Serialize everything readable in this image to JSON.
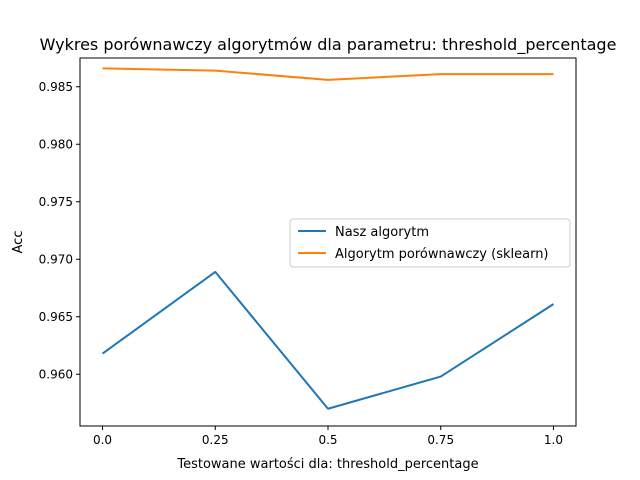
{
  "chart_data": {
    "type": "line",
    "title": "Wykres porównawczy algorytmów dla parametru: threshold_percentage",
    "xlabel": "Testowane wartości dla: threshold_percentage",
    "ylabel": "Acc",
    "x": [
      0.0,
      0.25,
      0.5,
      0.75,
      1.0
    ],
    "x_tick_labels": [
      "0.0",
      "0.25",
      "0.5",
      "0.75",
      "1.0"
    ],
    "y_ticks": [
      0.96,
      0.965,
      0.97,
      0.975,
      0.98,
      0.985
    ],
    "y_tick_labels": [
      "0.960",
      "0.965",
      "0.970",
      "0.975",
      "0.980",
      "0.985"
    ],
    "xlim": [
      -0.05,
      1.05
    ],
    "ylim": [
      0.9555,
      0.9875
    ],
    "grid": false,
    "legend_position": "center-right",
    "series": [
      {
        "name": "Nasz algorytm",
        "color": "#1f77b4",
        "values": [
          0.9618,
          0.9689,
          0.957,
          0.9598,
          0.9661
        ]
      },
      {
        "name": "Algorytm porównawczy (sklearn)",
        "color": "#ff7f0e",
        "values": [
          0.9866,
          0.9864,
          0.9856,
          0.9861,
          0.9861
        ]
      }
    ]
  }
}
